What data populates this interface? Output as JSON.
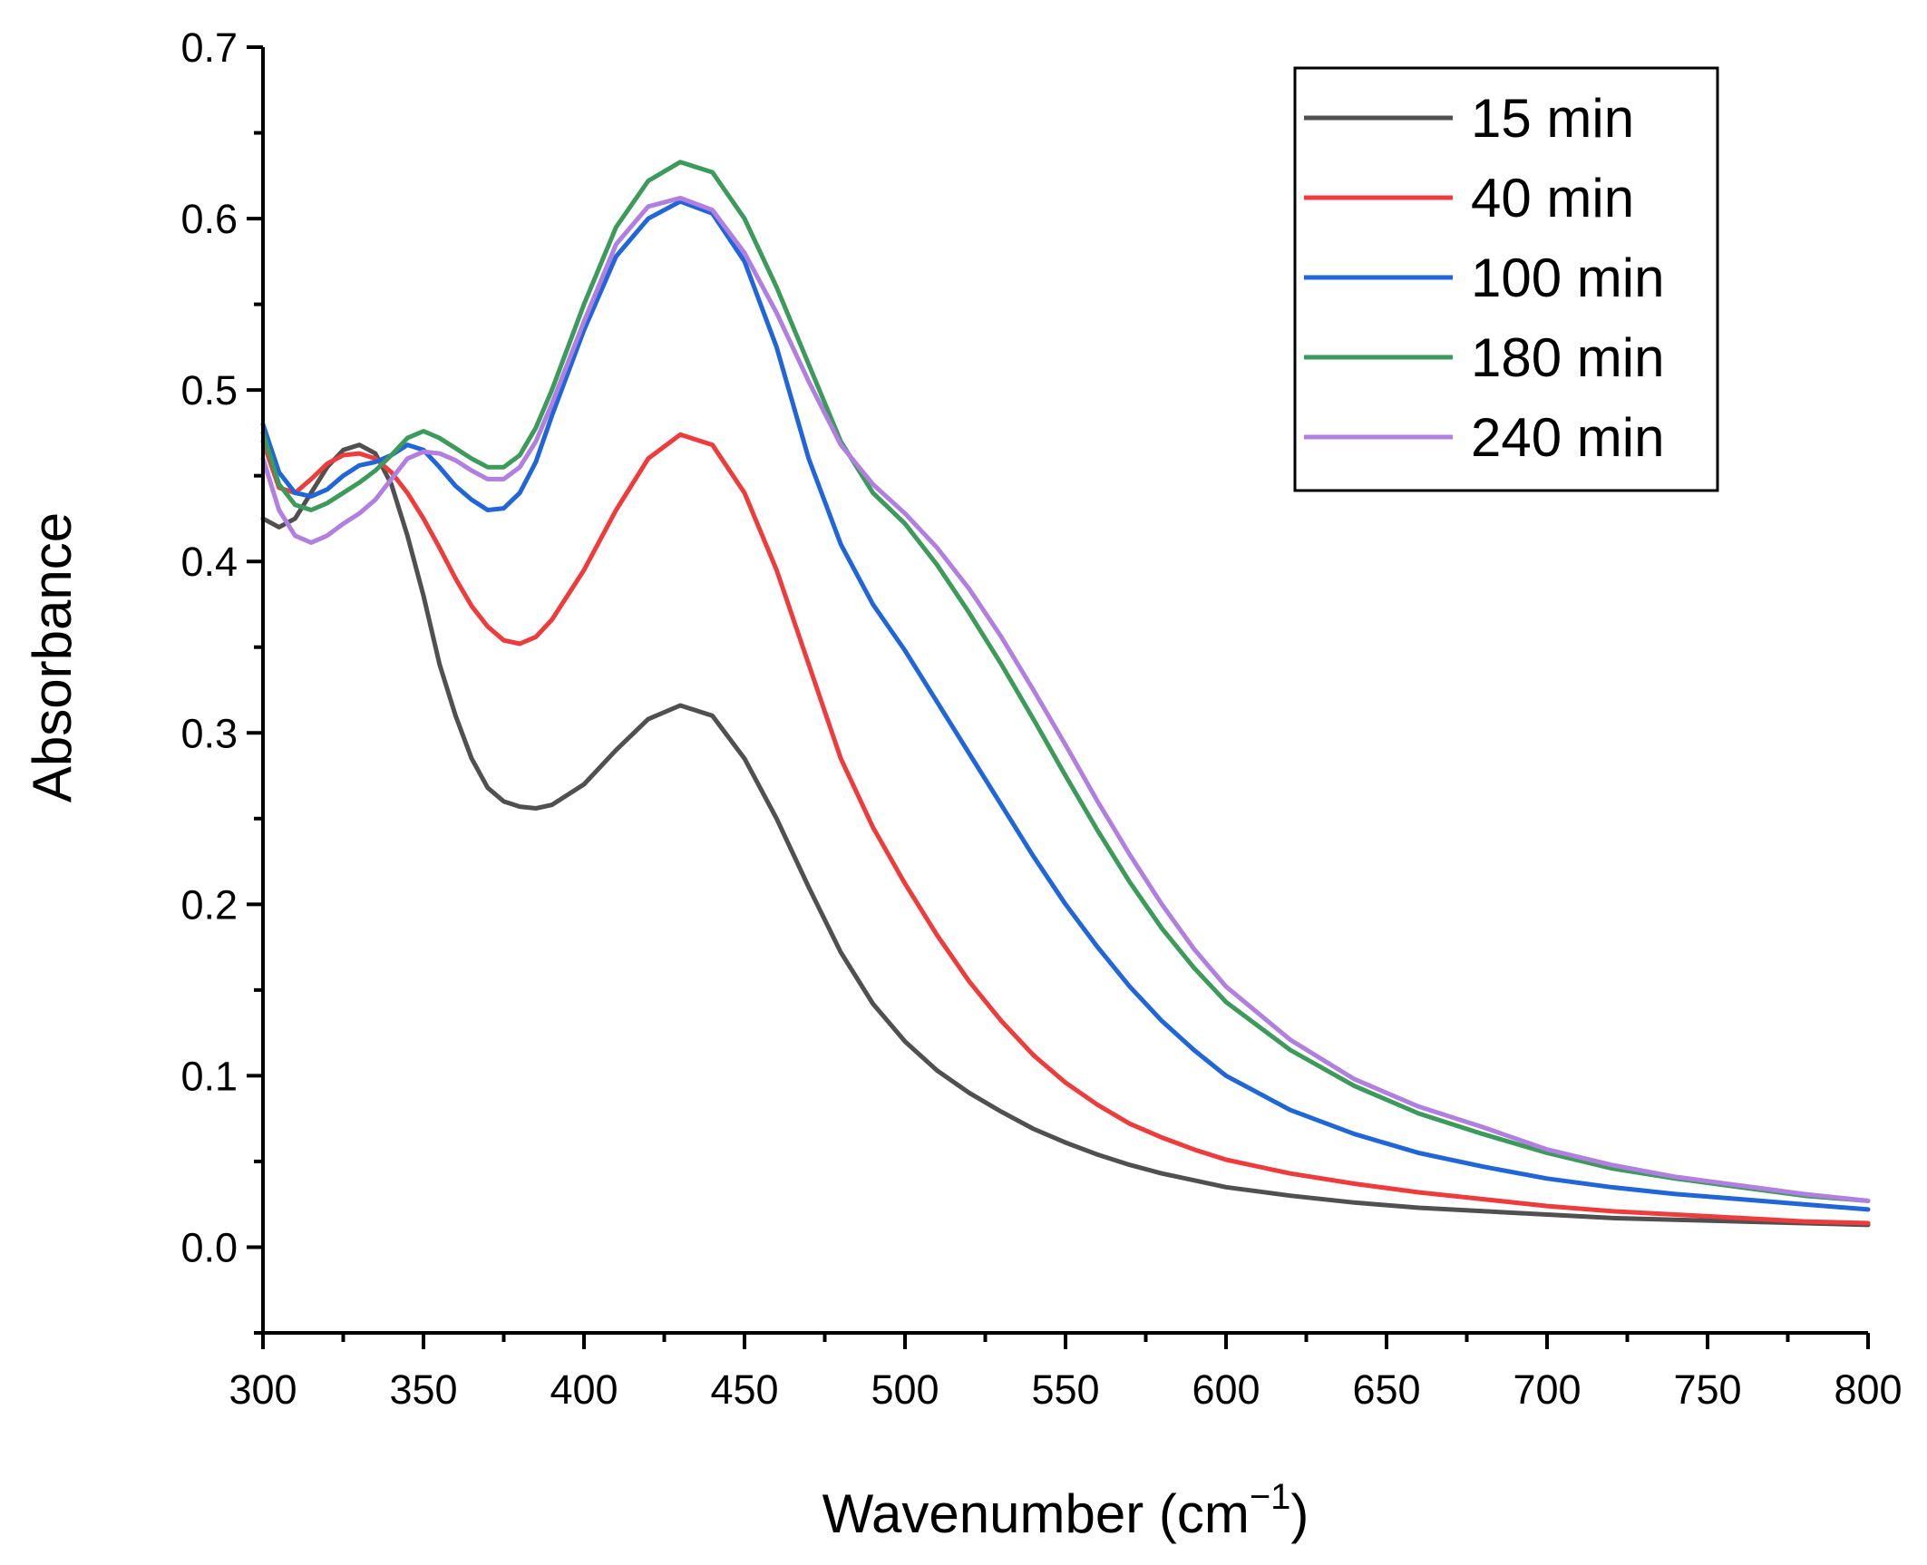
{
  "chart_data": {
    "type": "line",
    "title": "",
    "xlabel": "Wavenumber (cm",
    "xlabel_sup": "−1",
    "xlabel_end": ")",
    "ylabel": "Absorbance",
    "xlim": [
      300,
      800
    ],
    "ylim": [
      -0.05,
      0.7
    ],
    "x_ticks": [
      300,
      350,
      400,
      450,
      500,
      550,
      600,
      650,
      700,
      750,
      800
    ],
    "x_tick_labels": [
      "300",
      "350",
      "400",
      "450",
      "500",
      "550",
      "600",
      "650",
      "700",
      "750",
      "800"
    ],
    "y_ticks": [
      0.0,
      0.1,
      0.2,
      0.3,
      0.4,
      0.5,
      0.6,
      0.7
    ],
    "y_tick_labels": [
      "0.0",
      "0.1",
      "0.2",
      "0.3",
      "0.4",
      "0.5",
      "0.6",
      "0.7"
    ],
    "grid": false,
    "legend_position": "top-right",
    "x": [
      300,
      305,
      310,
      315,
      320,
      325,
      330,
      335,
      340,
      345,
      350,
      355,
      360,
      365,
      370,
      375,
      380,
      385,
      390,
      400,
      410,
      420,
      430,
      440,
      450,
      460,
      470,
      480,
      490,
      500,
      510,
      520,
      530,
      540,
      550,
      560,
      570,
      580,
      590,
      600,
      620,
      640,
      660,
      680,
      700,
      720,
      740,
      760,
      780,
      800
    ],
    "series": [
      {
        "name": "15 min",
        "color": "#505050",
        "values": [
          0.425,
          0.42,
          0.425,
          0.44,
          0.455,
          0.465,
          0.468,
          0.463,
          0.445,
          0.415,
          0.38,
          0.34,
          0.31,
          0.285,
          0.268,
          0.26,
          0.257,
          0.256,
          0.258,
          0.27,
          0.29,
          0.308,
          0.316,
          0.31,
          0.285,
          0.25,
          0.21,
          0.172,
          0.142,
          0.12,
          0.103,
          0.09,
          0.079,
          0.069,
          0.061,
          0.054,
          0.048,
          0.043,
          0.039,
          0.035,
          0.03,
          0.026,
          0.023,
          0.021,
          0.019,
          0.017,
          0.016,
          0.015,
          0.014,
          0.013
        ]
      },
      {
        "name": "40 min",
        "color": "#ee3b3b",
        "values": [
          0.47,
          0.443,
          0.44,
          0.448,
          0.457,
          0.462,
          0.463,
          0.46,
          0.452,
          0.44,
          0.425,
          0.408,
          0.39,
          0.374,
          0.362,
          0.354,
          0.352,
          0.356,
          0.366,
          0.395,
          0.43,
          0.46,
          0.474,
          0.468,
          0.44,
          0.395,
          0.34,
          0.285,
          0.245,
          0.212,
          0.182,
          0.155,
          0.132,
          0.112,
          0.096,
          0.083,
          0.072,
          0.064,
          0.057,
          0.051,
          0.043,
          0.037,
          0.032,
          0.028,
          0.024,
          0.021,
          0.019,
          0.017,
          0.015,
          0.014
        ]
      },
      {
        "name": "100 min",
        "color": "#2166d8",
        "values": [
          0.48,
          0.452,
          0.44,
          0.438,
          0.442,
          0.45,
          0.456,
          0.458,
          0.462,
          0.468,
          0.465,
          0.455,
          0.444,
          0.436,
          0.43,
          0.431,
          0.44,
          0.458,
          0.485,
          0.535,
          0.578,
          0.6,
          0.61,
          0.603,
          0.575,
          0.525,
          0.46,
          0.41,
          0.375,
          0.348,
          0.318,
          0.288,
          0.258,
          0.228,
          0.2,
          0.175,
          0.152,
          0.132,
          0.115,
          0.1,
          0.08,
          0.066,
          0.055,
          0.047,
          0.04,
          0.035,
          0.031,
          0.028,
          0.025,
          0.022
        ]
      },
      {
        "name": "180 min",
        "color": "#3c9a5a",
        "values": [
          0.475,
          0.445,
          0.433,
          0.43,
          0.434,
          0.44,
          0.446,
          0.453,
          0.462,
          0.472,
          0.476,
          0.472,
          0.466,
          0.46,
          0.455,
          0.455,
          0.462,
          0.478,
          0.5,
          0.55,
          0.595,
          0.622,
          0.633,
          0.627,
          0.6,
          0.56,
          0.515,
          0.47,
          0.44,
          0.422,
          0.398,
          0.37,
          0.34,
          0.308,
          0.275,
          0.243,
          0.213,
          0.186,
          0.163,
          0.143,
          0.115,
          0.094,
          0.078,
          0.066,
          0.055,
          0.046,
          0.04,
          0.035,
          0.03,
          0.027
        ]
      },
      {
        "name": "240 min",
        "color": "#b07fe0",
        "values": [
          0.46,
          0.43,
          0.415,
          0.411,
          0.415,
          0.422,
          0.428,
          0.436,
          0.448,
          0.46,
          0.464,
          0.463,
          0.459,
          0.453,
          0.448,
          0.448,
          0.455,
          0.47,
          0.492,
          0.54,
          0.585,
          0.607,
          0.612,
          0.605,
          0.58,
          0.545,
          0.505,
          0.468,
          0.445,
          0.428,
          0.408,
          0.384,
          0.356,
          0.325,
          0.293,
          0.26,
          0.229,
          0.2,
          0.174,
          0.152,
          0.121,
          0.098,
          0.082,
          0.07,
          0.057,
          0.048,
          0.041,
          0.036,
          0.031,
          0.027
        ]
      }
    ]
  }
}
